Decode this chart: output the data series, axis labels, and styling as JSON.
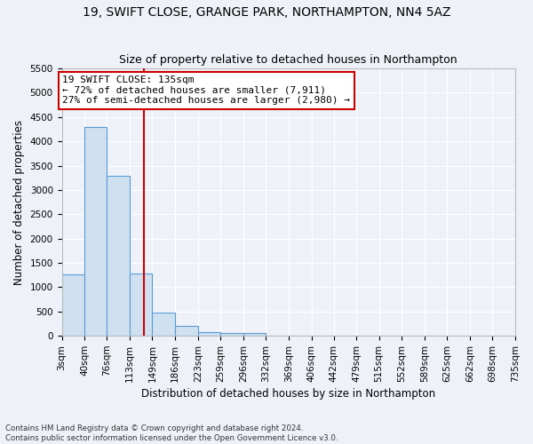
{
  "title1": "19, SWIFT CLOSE, GRANGE PARK, NORTHAMPTON, NN4 5AZ",
  "title2": "Size of property relative to detached houses in Northampton",
  "xlabel": "Distribution of detached houses by size in Northampton",
  "ylabel": "Number of detached properties",
  "footnote1": "Contains HM Land Registry data © Crown copyright and database right 2024.",
  "footnote2": "Contains public sector information licensed under the Open Government Licence v3.0.",
  "bin_edges": [
    3,
    40,
    76,
    113,
    149,
    186,
    223,
    259,
    296,
    332,
    369,
    406,
    442,
    479,
    515,
    552,
    589,
    625,
    662,
    698,
    735
  ],
  "bar_heights": [
    1260,
    4300,
    3300,
    1280,
    480,
    200,
    80,
    60,
    60,
    0,
    0,
    0,
    0,
    0,
    0,
    0,
    0,
    0,
    0,
    0
  ],
  "bar_color": "#cfe0f0",
  "bar_edge_color": "#5b9bd5",
  "ylim": [
    0,
    5500
  ],
  "yticks": [
    0,
    500,
    1000,
    1500,
    2000,
    2500,
    3000,
    3500,
    4000,
    4500,
    5000,
    5500
  ],
  "property_size": 135,
  "red_line_color": "#cc0000",
  "annotation_title": "19 SWIFT CLOSE: 135sqm",
  "annotation_line1": "← 72% of detached houses are smaller (7,911)",
  "annotation_line2": "27% of semi-detached houses are larger (2,980) →",
  "annotation_box_color": "#ffffff",
  "annotation_box_edge": "#cc0000",
  "background_color": "#eef2f8",
  "grid_color": "#ffffff",
  "title_fontsize": 10,
  "subtitle_fontsize": 9,
  "axis_label_fontsize": 8.5,
  "tick_fontsize": 7.5,
  "annotation_fontsize": 8
}
